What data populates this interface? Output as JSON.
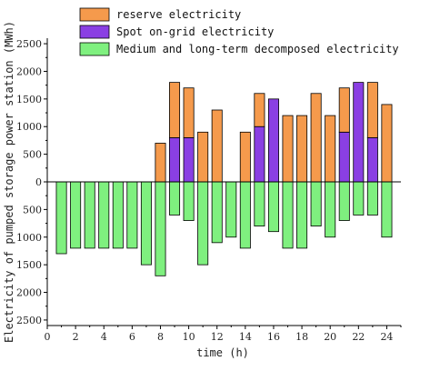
{
  "chart_data": {
    "type": "bar",
    "title": "",
    "xlabel": "time (h)",
    "ylabel": "Electricity of pumped storage power station (MWh)",
    "xlim": [
      0,
      25
    ],
    "ylim": [
      -2600,
      2600
    ],
    "x_ticks": [
      0,
      2,
      4,
      6,
      8,
      10,
      12,
      14,
      16,
      18,
      20,
      22,
      24
    ],
    "y_ticks": [
      -2500,
      -2000,
      -1500,
      -1000,
      -500,
      0,
      500,
      1000,
      1500,
      2000,
      2500
    ],
    "y_tick_labels": [
      "2500",
      "2000",
      "1500",
      "1000",
      "500",
      "0",
      "500",
      "1000",
      "1500",
      "2000",
      "2500"
    ],
    "legend_position": "top-right",
    "grid": false,
    "x": [
      1,
      2,
      3,
      4,
      5,
      6,
      7,
      8,
      9,
      10,
      11,
      12,
      13,
      14,
      15,
      16,
      17,
      18,
      19,
      20,
      21,
      22,
      23,
      24
    ],
    "series": [
      {
        "name": "reserve electricity",
        "color": "#f59a4c",
        "values": [
          0,
          0,
          0,
          0,
          0,
          0,
          0,
          700,
          1000,
          900,
          900,
          1300,
          0,
          900,
          600,
          0,
          1200,
          1200,
          1600,
          1200,
          800,
          0,
          1000,
          1400
        ]
      },
      {
        "name": "Spot on-grid electricity",
        "color": "#8a3fe3",
        "values": [
          0,
          0,
          0,
          0,
          0,
          0,
          0,
          0,
          800,
          800,
          0,
          0,
          0,
          0,
          1000,
          1500,
          0,
          0,
          0,
          0,
          900,
          1800,
          800,
          0
        ]
      },
      {
        "name": "Medium and long-term decomposed electricity",
        "color": "#7ff07f",
        "values": [
          -1300,
          -1200,
          -1200,
          -1200,
          -1200,
          -1200,
          -1500,
          -1700,
          -600,
          -700,
          -1500,
          -1100,
          -1000,
          -1200,
          -800,
          -900,
          -1200,
          -1200,
          -800,
          -1000,
          -700,
          -600,
          -600,
          -1000
        ]
      }
    ]
  }
}
